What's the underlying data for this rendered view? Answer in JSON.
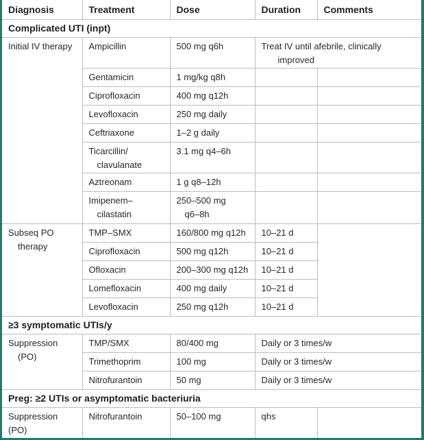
{
  "colors": {
    "page_frame_teal": "#217a6d",
    "grid_line_gray": "#bcbdc0",
    "text": "#25272b"
  },
  "header": {
    "diagnosis": "Diagnosis",
    "treatment": "Treatment",
    "dose": "Dose",
    "duration": "Duration",
    "comments": "Comments"
  },
  "section1": "Complicated UTI (inpt)",
  "b1": {
    "diagnosis": "Initial IV therapy",
    "r1": {
      "t": "Ampicillin",
      "d": "500 mg q6h",
      "c": "Treat IV until afebrile, clinically\nimproved"
    },
    "r2": {
      "t": "Gentamicin",
      "d": "1 mg/kg q8h"
    },
    "r3": {
      "t": "Ciprofloxacin",
      "d": "400 mg q12h"
    },
    "r4": {
      "t": "Levofloxacin",
      "d": "250 mg daily"
    },
    "r5": {
      "t": "Ceftriaxone",
      "d": "1–2 g daily"
    },
    "r6": {
      "t": "Ticarcillin/\nclavulanate",
      "d": "3.1 mg q4–6h"
    },
    "r7": {
      "t": "Aztreonam",
      "d": "1 g q8–12h"
    },
    "r8": {
      "t": "Imipenem–\ncilastatin",
      "d": "250–500 mg\nq6–8h"
    }
  },
  "b2": {
    "diagnosis": "Subseq PO\ntherapy",
    "r1": {
      "t": "TMP–SMX",
      "d": "160/800 mg q12h",
      "dur": "10–21 d"
    },
    "r2": {
      "t": "Ciprofloxacin",
      "d": "500 mg q12h",
      "dur": "10–21 d"
    },
    "r3": {
      "t": "Ofloxacin",
      "d": "200–300 mg q12h",
      "dur": "10–21 d"
    },
    "r4": {
      "t": "Lomefloxacin",
      "d": "400 mg daily",
      "dur": "10–21 d"
    },
    "r5": {
      "t": "Levofloxacin",
      "d": "250 mg q12h",
      "dur": "10–21 d"
    }
  },
  "section2": "≥3 symptomatic UTIs/y",
  "b3": {
    "diagnosis": "Suppression\n(PO)",
    "r1": {
      "t": "TMP/SMX",
      "d": "80/400 mg",
      "dur": "Daily or 3 times/w"
    },
    "r2": {
      "t": "Trimethoprim",
      "d": "100 mg",
      "dur": "Daily or 3 times/w"
    },
    "r3": {
      "t": "Nitrofurantoin",
      "d": "50 mg",
      "dur": "Daily or 3 times/w"
    }
  },
  "section3": "Preg: ≥2 UTIs or asymptomatic bacteriuria",
  "b4": {
    "diagnosis": "Suppression (PO)",
    "r1": {
      "t": "Nitrofurantoin",
      "d": "50–100 mg",
      "dur": "qhs"
    }
  }
}
